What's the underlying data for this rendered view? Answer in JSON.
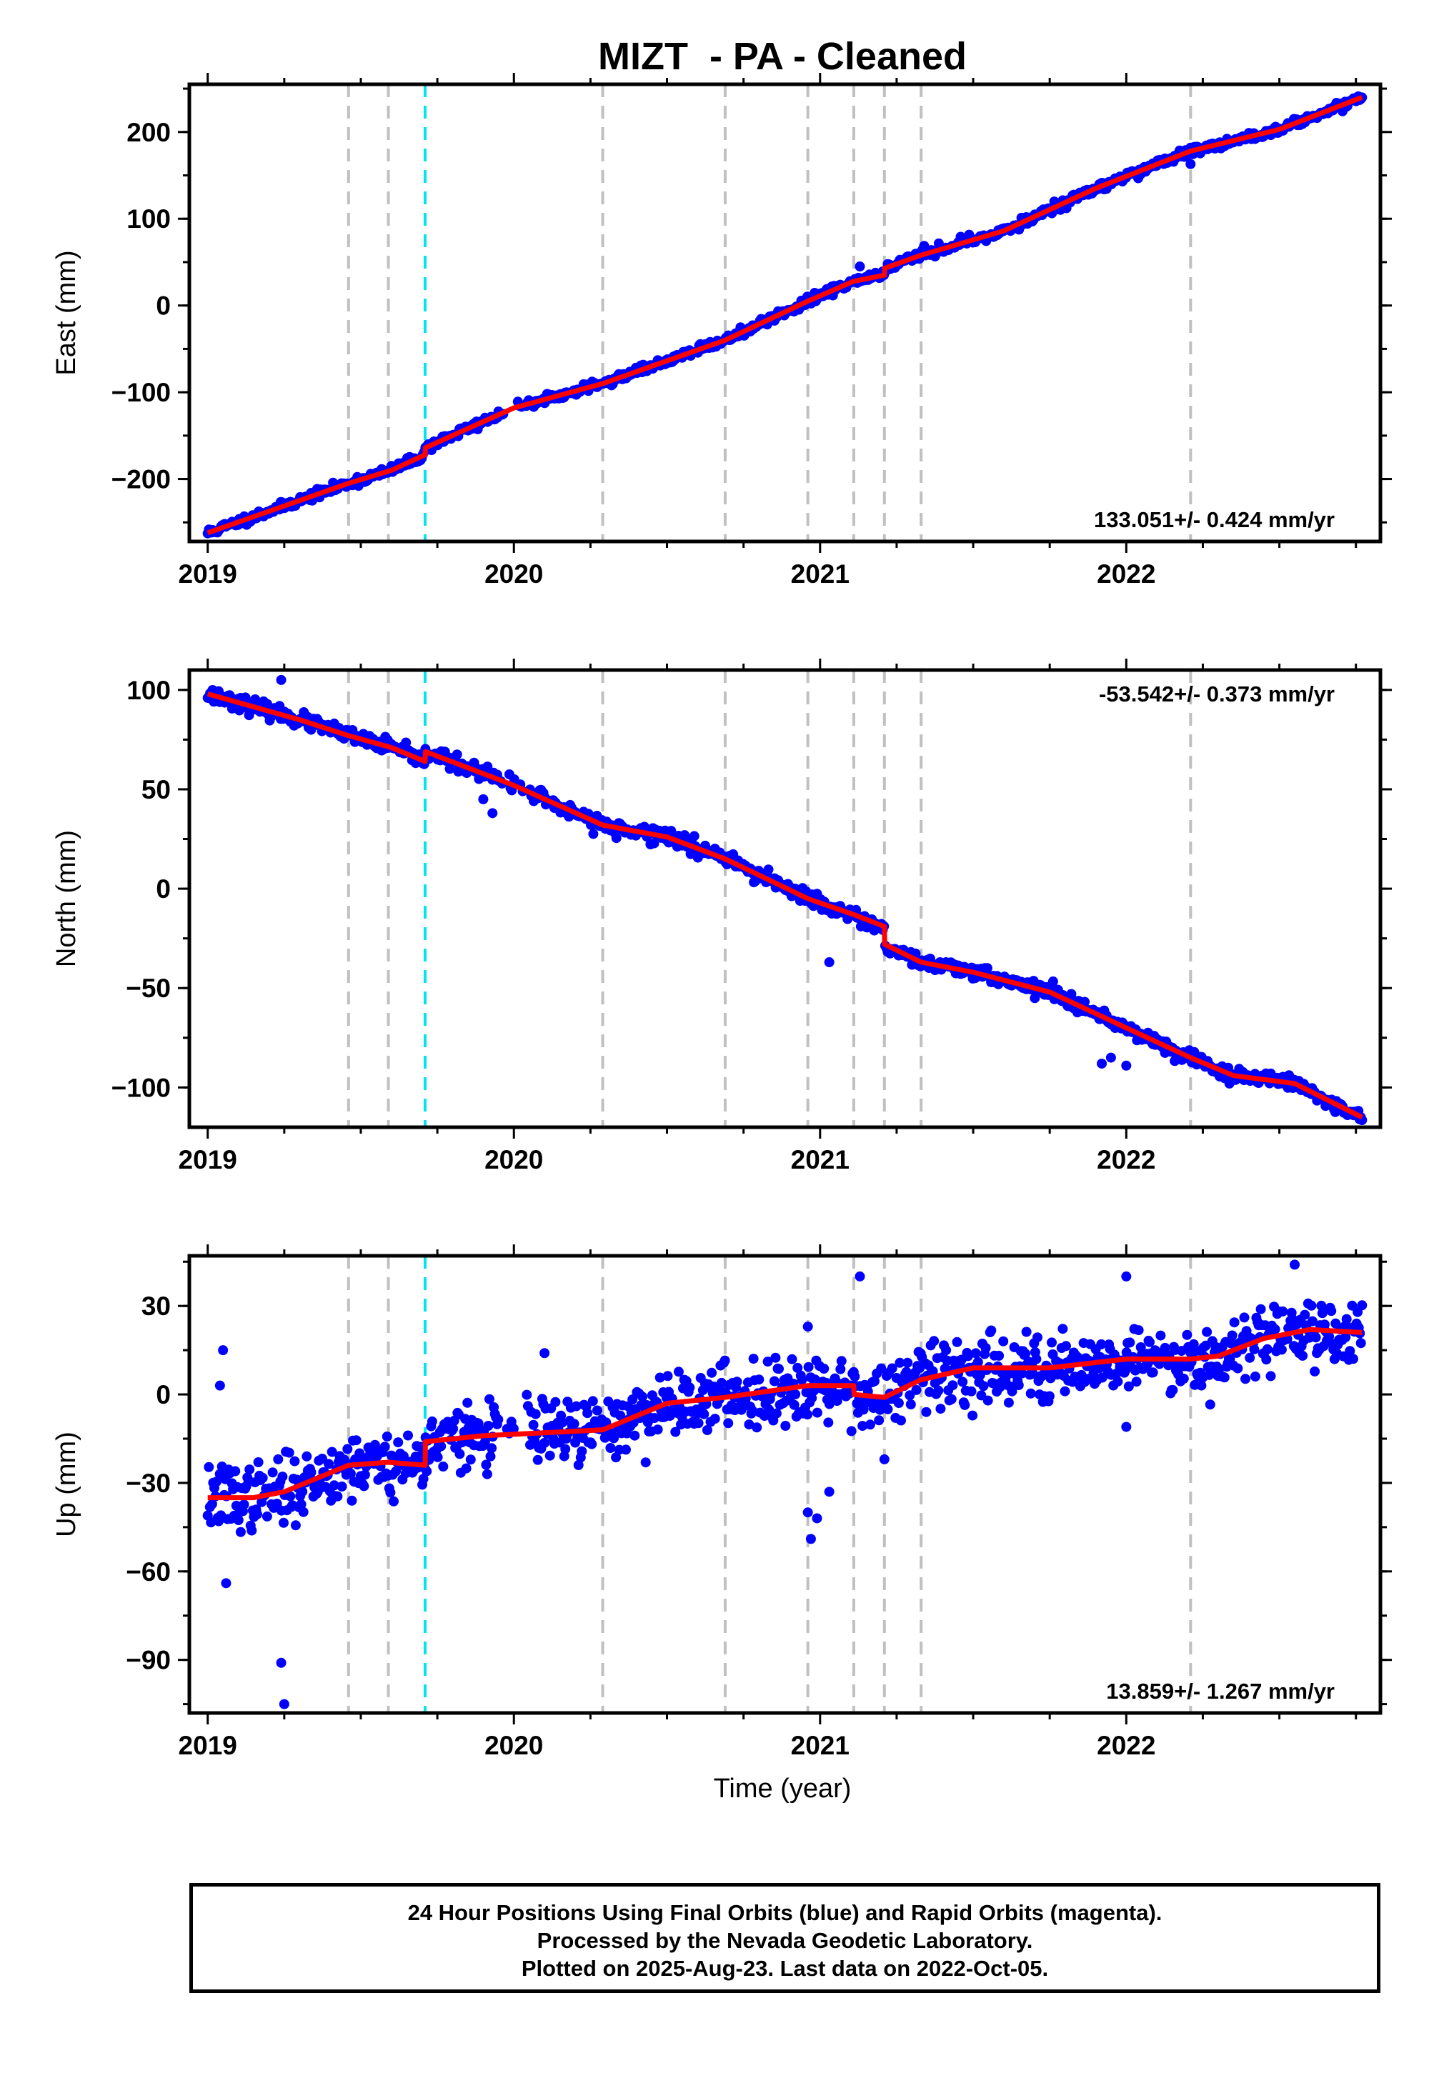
{
  "title": "MIZT  - PA - Cleaned",
  "xlabel": "Time (year)",
  "footer": {
    "line1": "24 Hour Positions Using Final Orbits (blue) and Rapid Orbits (magenta).",
    "line2": "Processed by the Nevada Geodetic Laboratory.",
    "line3": "Plotted on 2025-Aug-23. Last data on 2022-Oct-05."
  },
  "colors": {
    "data_points": "#0000ff",
    "model_fit": "#ff0000",
    "event_lines": "#c0c0c0",
    "equipment_line": "#00e5ee",
    "frame": "#000000"
  },
  "chart_data": [
    {
      "type": "scatter",
      "ylabel": "East (mm)",
      "rate_text": "133.051+/- 0.424 mm/yr",
      "xlim": [
        2018.94,
        2022.83
      ],
      "ylim": [
        -272,
        255
      ],
      "xticks": [
        2019,
        2020,
        2021,
        2022
      ],
      "yticks": [
        -200,
        -100,
        0,
        100,
        200
      ],
      "ytick_labels": [
        "−200",
        "−100",
        "0",
        "100",
        "200"
      ],
      "event_lines": [
        2019.46,
        2019.59,
        2020.29,
        2020.69,
        2020.96,
        2021.11,
        2021.21,
        2021.33,
        2022.21
      ],
      "equipment_change": [
        2019.71
      ],
      "model": {
        "x": [
          2019.0,
          2019.46,
          2019.6,
          2019.71,
          2019.711,
          2020.0,
          2020.29,
          2020.69,
          2020.96,
          2021.11,
          2021.21,
          2021.211,
          2021.33,
          2021.6,
          2021.9,
          2022.21,
          2022.5,
          2022.77
        ],
        "y": [
          -262,
          -205,
          -190,
          -172,
          -164,
          -118,
          -90,
          -40,
          5,
          28,
          35,
          43,
          58,
          86,
          135,
          178,
          203,
          240
        ],
        "style": "line"
      },
      "scatter": {
        "seed": 11,
        "n": 950,
        "x_range": [
          2019.0,
          2022.77
        ],
        "noise": 2.6,
        "outliers": [
          [
            2022.21,
            163
          ],
          [
            2020.98,
            12
          ],
          [
            2021.13,
            45
          ],
          [
            2019.72,
            -160
          ]
        ]
      }
    },
    {
      "type": "scatter",
      "ylabel": "North (mm)",
      "rate_text": "-53.542+/- 0.373 mm/yr",
      "xlim": [
        2018.94,
        2022.83
      ],
      "ylim": [
        -120,
        110
      ],
      "xticks": [
        2019,
        2020,
        2021,
        2022
      ],
      "yticks": [
        -100,
        -50,
        0,
        50,
        100
      ],
      "ytick_labels": [
        "−100",
        "−50",
        "0",
        "50",
        "100"
      ],
      "event_lines": [
        2019.46,
        2019.59,
        2020.29,
        2020.69,
        2020.96,
        2021.11,
        2021.21,
        2021.33,
        2022.21
      ],
      "equipment_change": [
        2019.71
      ],
      "model": {
        "x": [
          2019.0,
          2019.3,
          2019.46,
          2019.6,
          2019.71,
          2019.711,
          2020.0,
          2020.29,
          2020.5,
          2020.69,
          2020.96,
          2021.11,
          2021.21,
          2021.211,
          2021.33,
          2021.5,
          2021.75,
          2022.0,
          2022.21,
          2022.35,
          2022.55,
          2022.77
        ],
        "y": [
          98,
          85,
          77,
          71,
          64,
          69,
          52,
          32,
          26,
          15,
          -5,
          -13,
          -19,
          -28,
          -37,
          -42,
          -52,
          -70,
          -85,
          -94,
          -98,
          -115
        ],
        "style": "line"
      },
      "scatter": {
        "seed": 23,
        "n": 950,
        "x_range": [
          2019.0,
          2022.77
        ],
        "noise": 1.8,
        "outliers": [
          [
            2019.24,
            105
          ],
          [
            2019.93,
            38
          ],
          [
            2021.03,
            -37
          ],
          [
            2019.9,
            45
          ],
          [
            2021.95,
            -85
          ],
          [
            2022.0,
            -89
          ],
          [
            2021.92,
            -88
          ]
        ]
      }
    },
    {
      "type": "scatter",
      "ylabel": "Up (mm)",
      "rate_text": "13.859+/- 1.267 mm/yr",
      "xlim": [
        2018.94,
        2022.83
      ],
      "ylim": [
        -108,
        47
      ],
      "xticks": [
        2019,
        2020,
        2021,
        2022
      ],
      "yticks": [
        -90,
        -60,
        -30,
        0,
        30
      ],
      "ytick_labels": [
        "−90",
        "−60",
        "−30",
        "0",
        "30"
      ],
      "event_lines": [
        2019.46,
        2019.59,
        2020.29,
        2020.69,
        2020.96,
        2021.11,
        2021.21,
        2021.33,
        2022.21
      ],
      "equipment_change": [
        2019.71
      ],
      "model": {
        "x": [
          2019.0,
          2019.15,
          2019.25,
          2019.46,
          2019.59,
          2019.71,
          2019.711,
          2019.9,
          2020.1,
          2020.29,
          2020.5,
          2020.69,
          2020.96,
          2021.11,
          2021.111,
          2021.21,
          2021.33,
          2021.5,
          2021.75,
          2022.0,
          2022.21,
          2022.3,
          2022.45,
          2022.6,
          2022.77
        ],
        "y": [
          -35,
          -35,
          -33,
          -24,
          -23,
          -24,
          -16,
          -14,
          -13,
          -12,
          -3,
          -1,
          3,
          3,
          0,
          -1,
          5,
          9,
          9,
          12,
          12,
          13,
          19,
          22,
          21
        ],
        "style": "line"
      },
      "scatter": {
        "seed": 37,
        "n": 1050,
        "x_range": [
          2019.0,
          2022.77
        ],
        "noise": 5.5,
        "outliers": [
          [
            2019.04,
            3
          ],
          [
            2019.05,
            15
          ],
          [
            2019.06,
            -64
          ],
          [
            2019.24,
            -91
          ],
          [
            2019.25,
            -105
          ],
          [
            2020.96,
            -40
          ],
          [
            2020.97,
            -49
          ],
          [
            2020.99,
            -42
          ],
          [
            2021.03,
            -33
          ],
          [
            2021.13,
            40
          ],
          [
            2021.21,
            -22
          ],
          [
            2022.0,
            40
          ],
          [
            2022.0,
            -11
          ],
          [
            2022.55,
            44
          ],
          [
            2020.1,
            14
          ],
          [
            2020.96,
            23
          ]
        ]
      }
    }
  ]
}
